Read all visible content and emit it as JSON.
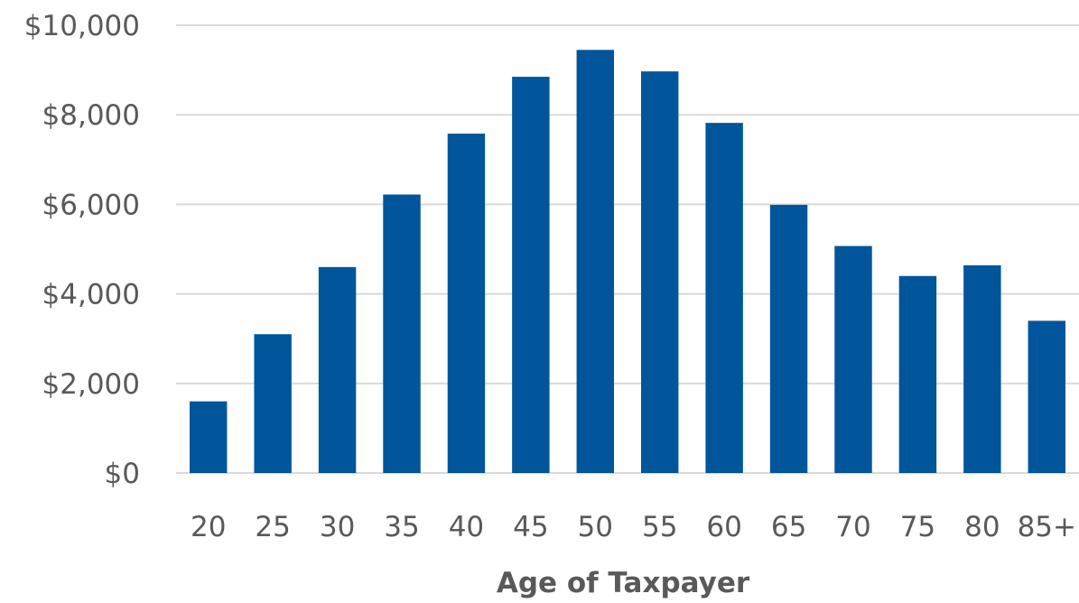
{
  "chart_data": {
    "type": "bar",
    "title": "",
    "xlabel": "Age of Taxpayer",
    "ylabel": "",
    "categories": [
      "20",
      "25",
      "30",
      "35",
      "40",
      "45",
      "50",
      "55",
      "60",
      "65",
      "70",
      "75",
      "80",
      "85+"
    ],
    "values": [
      1600,
      3100,
      4600,
      6220,
      7580,
      8850,
      9450,
      8970,
      7820,
      5990,
      5070,
      4400,
      4640,
      3400
    ],
    "ylim": [
      0,
      10000
    ],
    "yticks": [
      0,
      2000,
      4000,
      6000,
      8000,
      10000
    ],
    "ytick_labels": [
      "$0",
      "$2,000",
      "$4,000",
      "$6,000",
      "$8,000",
      "$10,000"
    ],
    "grid": true,
    "legend": "none",
    "colors": {
      "bar": "#00559B",
      "grid": "#D9D9D9",
      "text": "#595959"
    }
  }
}
